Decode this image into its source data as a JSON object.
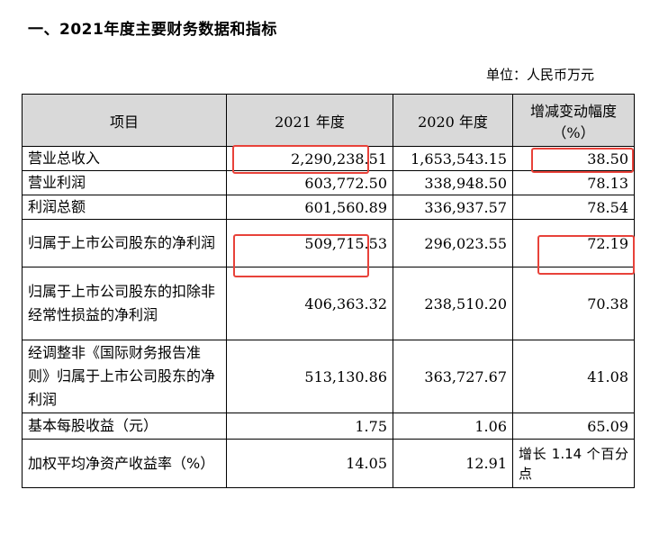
{
  "heading": "一、2021年度主要财务数据和指标",
  "unit": "单位：人民币万元",
  "columns": [
    "项目",
    "2021 年度",
    "2020 年度",
    "增减变动幅度（%）"
  ],
  "rows": [
    {
      "label": "营业总收入",
      "v2021": "2,290,238.51",
      "v2020": "1,653,543.15",
      "change": "38.50"
    },
    {
      "label": "营业利润",
      "v2021": "603,772.50",
      "v2020": "338,948.50",
      "change": "78.13"
    },
    {
      "label": "利润总额",
      "v2021": "601,560.89",
      "v2020": "336,937.57",
      "change": "78.54"
    },
    {
      "label": "归属于上市公司股东的净利润",
      "v2021": "509,715.53",
      "v2020": "296,023.55",
      "change": "72.19"
    },
    {
      "label": "归属于上市公司股东的扣除非经常性损益的净利润",
      "v2021": "406,363.32",
      "v2020": "238,510.20",
      "change": "70.38"
    },
    {
      "label": "经调整非《国际财务报告准则》归属于上市公司股东的净利润",
      "v2021": "513,130.86",
      "v2020": "363,727.67",
      "change": "41.08"
    },
    {
      "label": "基本每股收益（元）",
      "v2021": "1.75",
      "v2020": "1.06",
      "change": "65.09"
    },
    {
      "label": "加权平均净资产收益率（%）",
      "v2021": "14.05",
      "v2020": "12.91",
      "change": "增长 1.14 个百分点"
    }
  ]
}
